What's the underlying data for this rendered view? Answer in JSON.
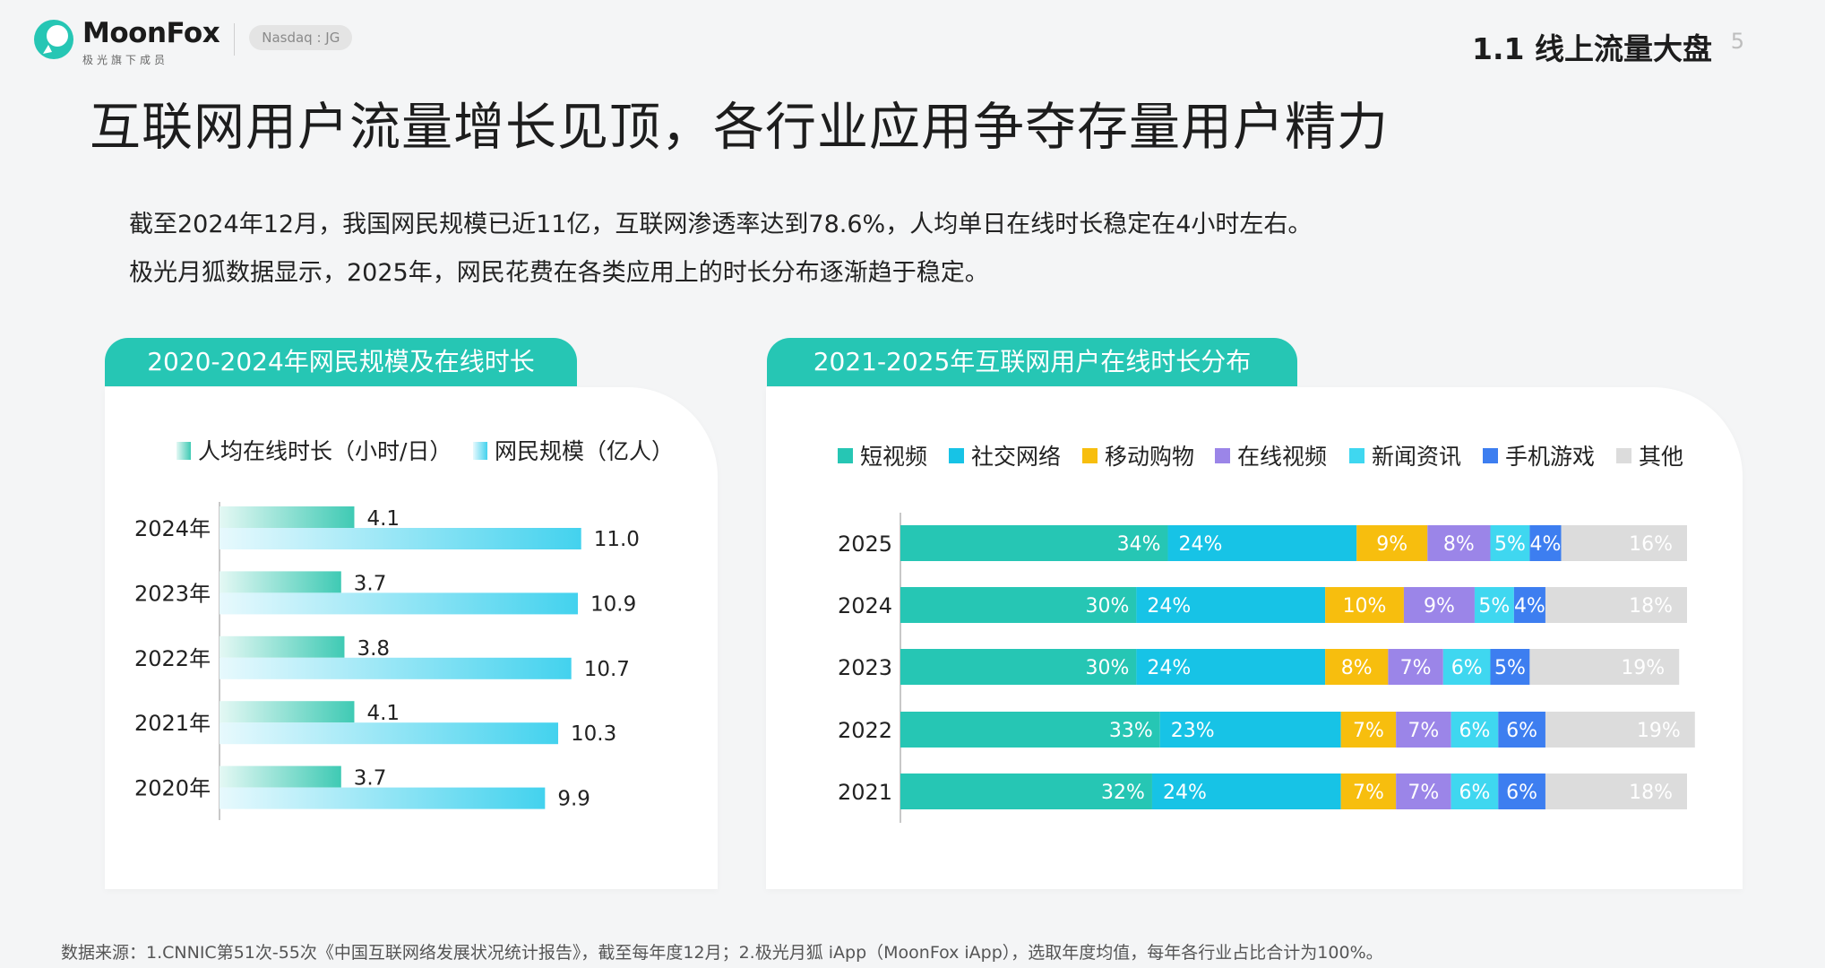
{
  "brand": {
    "name": "MoonFox",
    "sub": "极光旗下成员",
    "ticker": "Nasdaq : JG"
  },
  "header": {
    "section": "1.1 线上流量大盘",
    "page": "5"
  },
  "headline": "互联网用户流量增长见顶，各行业应用争夺存量用户精力",
  "desc": {
    "line1": "截至2024年12月，我国网民规模已近11亿，互联网渗透率达到78.6%，人均单日在线时长稳定在4小时左右。",
    "line2": "极光月狐数据显示，2025年，网民花费在各类应用上的时长分布逐渐趋于稳定。"
  },
  "footer": "数据来源：1.CNNIC第51次-55次《中国互联网络发展状况统计报告》，截至每年度12月；2.极光月狐 iApp（MoonFox iApp），选取年度均值，每年各行业占比合计为100%。",
  "colors": {
    "accent": "#26c6b4",
    "cat": [
      "#26c6b4",
      "#17c3e6",
      "#f7be0e",
      "#9b85e8",
      "#3fd7f0",
      "#3d7ef0",
      "#dcdcdc"
    ]
  },
  "chart_data": [
    {
      "type": "bar",
      "orientation": "horizontal",
      "title": "2020-2024年网民规模及在线时长",
      "categories": [
        "2024年",
        "2023年",
        "2022年",
        "2021年",
        "2020年"
      ],
      "series": [
        {
          "name": "人均在线时长（小时/日）",
          "values": [
            4.1,
            3.7,
            3.8,
            4.1,
            3.7
          ],
          "display": [
            "4.1",
            "3.7",
            "3.8",
            "4.1",
            "3.7"
          ]
        },
        {
          "name": "网民规模（亿人）",
          "values": [
            11.0,
            10.9,
            10.7,
            10.3,
            9.9
          ],
          "display": [
            "11.0",
            "10.9",
            "10.7",
            "10.3",
            "9.9"
          ]
        }
      ]
    },
    {
      "type": "bar",
      "orientation": "horizontal",
      "stacked": true,
      "title": "2021-2025年互联网用户在线时长分布",
      "categories": [
        "2025",
        "2024",
        "2023",
        "2022",
        "2021"
      ],
      "unit": "%",
      "series": [
        {
          "name": "短视频",
          "values": [
            34,
            30,
            30,
            33,
            32
          ]
        },
        {
          "name": "社交网络",
          "values": [
            24,
            24,
            24,
            23,
            24
          ]
        },
        {
          "name": "移动购物",
          "values": [
            9,
            10,
            8,
            7,
            7
          ]
        },
        {
          "name": "在线视频",
          "values": [
            8,
            9,
            7,
            7,
            7
          ]
        },
        {
          "name": "新闻资讯",
          "values": [
            5,
            5,
            6,
            6,
            6
          ]
        },
        {
          "name": "手机游戏",
          "values": [
            4,
            4,
            5,
            6,
            6
          ]
        },
        {
          "name": "其他",
          "values": [
            16,
            18,
            19,
            19,
            18
          ]
        }
      ]
    }
  ]
}
